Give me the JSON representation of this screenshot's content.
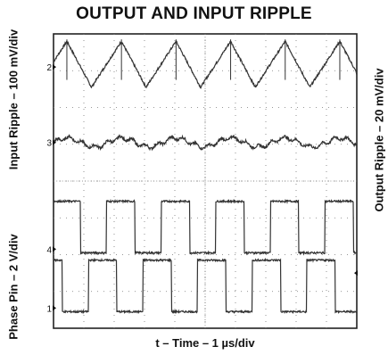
{
  "chart_data": {
    "type": "line",
    "title": "OUTPUT AND INPUT RIPPLE",
    "xlabel": "t – Time – 1 µs/div",
    "ylabel_left_top": "Input Ripple – 100 mV/div",
    "ylabel_left_bottom": "Phase Pin – 2 V/div",
    "ylabel_right": "Output Ripple – 20 mV/div",
    "x_divisions": 10,
    "y_divisions": 8,
    "xlim": [
      0,
      10
    ],
    "ylim": [
      0,
      8
    ],
    "grid": true,
    "channel_markers": [
      {
        "label": "2",
        "level": 7.1
      },
      {
        "label": "3",
        "level": 5.05
      },
      {
        "label": "4",
        "level": 2.15
      },
      {
        "label": "1",
        "level": 0.55
      }
    ],
    "series": [
      {
        "name": "2",
        "style": "triangle",
        "period_div": 1.8,
        "base": 6.55,
        "peak": 7.8,
        "phase_div": 0.55
      },
      {
        "name": "3",
        "style": "ripple",
        "period_div": 1.8,
        "center": 5.05,
        "amplitude": 0.12
      },
      {
        "name": "4",
        "style": "square",
        "period_div": 1.8,
        "low": 2.05,
        "high": 3.45,
        "duty": 0.52,
        "phase_div": 0.05
      },
      {
        "name": "1",
        "style": "square",
        "period_div": 1.8,
        "low": 0.45,
        "high": 1.85,
        "duty": 0.52,
        "phase_div": 0.65
      }
    ]
  }
}
